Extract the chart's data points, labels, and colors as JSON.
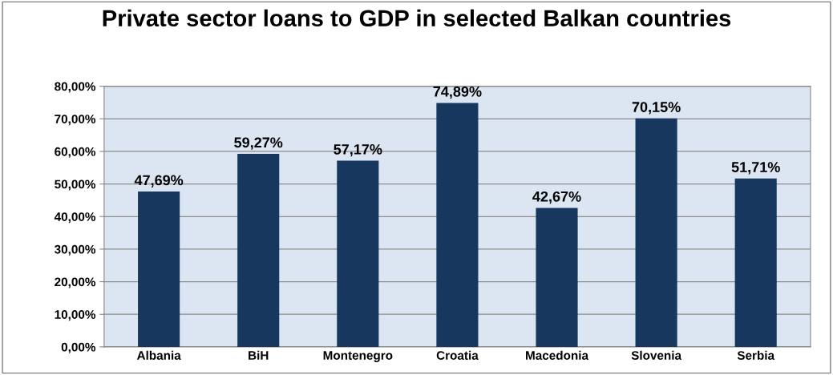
{
  "chart_data": {
    "type": "bar",
    "title": "Private sector loans to GDP in selected Balkan countries",
    "categories": [
      "Albania",
      "BiH",
      "Montenegro",
      "Croatia",
      "Macedonia",
      "Slovenia",
      "Serbia"
    ],
    "values": [
      47.69,
      59.27,
      57.17,
      74.89,
      42.67,
      70.15,
      51.71
    ],
    "value_labels": [
      "47,69%",
      "59,27%",
      "57,17%",
      "74,89%",
      "42,67%",
      "70,15%",
      "51,71%"
    ],
    "color": "#17375e",
    "ylim": [
      0,
      80
    ],
    "yticks": [
      {
        "value": 0,
        "label": "0,00%"
      },
      {
        "value": 10,
        "label": "10,00%"
      },
      {
        "value": 20,
        "label": "20,00%"
      },
      {
        "value": 30,
        "label": "30,00%"
      },
      {
        "value": 40,
        "label": "40,00%"
      },
      {
        "value": 50,
        "label": "50,00%"
      },
      {
        "value": 60,
        "label": "60,00%"
      },
      {
        "value": 70,
        "label": "70,00%"
      },
      {
        "value": 80,
        "label": "80,00%"
      }
    ],
    "grid": "y",
    "legend": false
  }
}
